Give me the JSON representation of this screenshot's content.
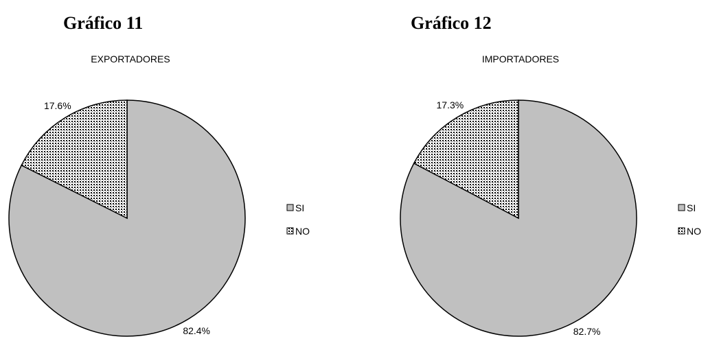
{
  "chart_data": [
    {
      "type": "pie",
      "heading": "Gráfico 11",
      "title": "EXPORTADORES",
      "categories": [
        "SI",
        "NO"
      ],
      "values": [
        82.4,
        17.6
      ],
      "value_labels": [
        "82.4%",
        "17.6%"
      ],
      "colors": [
        "#c0c0c0",
        "#000000"
      ],
      "patterns": [
        "solid",
        "dots"
      ]
    },
    {
      "type": "pie",
      "heading": "Gráfico 12",
      "title": "IMPORTADORES",
      "categories": [
        "SI",
        "NO"
      ],
      "values": [
        82.7,
        17.3
      ],
      "value_labels": [
        "82.7%",
        "17.3%"
      ],
      "colors": [
        "#c0c0c0",
        "#000000"
      ],
      "patterns": [
        "solid",
        "dots"
      ]
    }
  ]
}
